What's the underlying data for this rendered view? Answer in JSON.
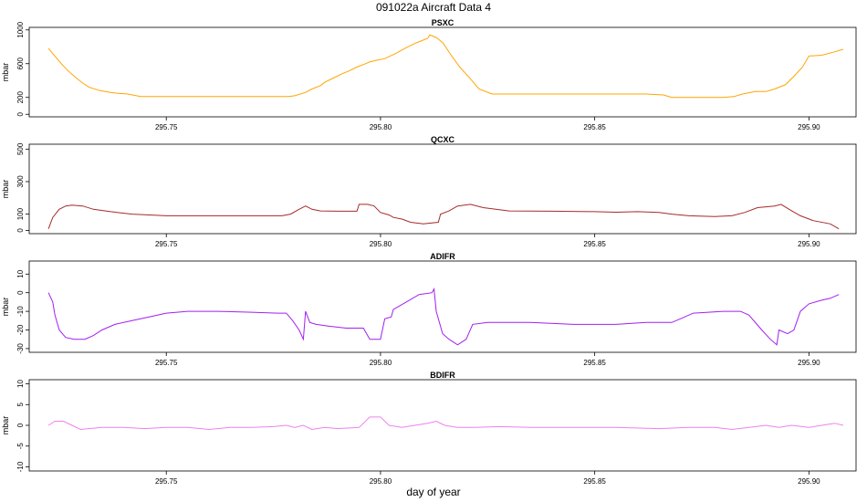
{
  "figure": {
    "title": "091022a   Aircraft Data 4",
    "xlabel": "day of year"
  },
  "chart_data": [
    {
      "type": "line",
      "title": "PSXC",
      "ylabel": "mbar",
      "xlim": [
        295.718,
        295.911
      ],
      "ylim": [
        -30,
        1030
      ],
      "yticks": [
        0,
        200,
        600,
        1000
      ],
      "xticks": [
        295.75,
        295.8,
        295.85,
        295.9
      ],
      "color": "#FFA500",
      "series": [
        {
          "x": [
            295.7225,
            295.7235,
            295.7245,
            295.7255,
            295.727,
            295.729,
            295.7305,
            295.732,
            295.7345,
            295.737,
            295.7385,
            295.741,
            295.744,
            295.748,
            295.752,
            295.756,
            295.76,
            295.764,
            295.768,
            295.772,
            295.776,
            295.7785,
            295.78,
            295.7825,
            295.784,
            295.786,
            295.787,
            295.789,
            295.791,
            295.7925,
            295.7945,
            295.7965,
            295.7975,
            295.799,
            295.801,
            295.8035,
            295.806,
            295.8085,
            295.81,
            295.811,
            295.8115,
            295.813,
            295.8145,
            295.8165,
            295.8185,
            295.821,
            295.823,
            295.826,
            295.832,
            295.84,
            295.848,
            295.856,
            295.862,
            295.866,
            295.868,
            295.872,
            295.876,
            295.88,
            295.8825,
            295.8845,
            295.8875,
            295.89,
            295.892,
            295.8945,
            295.8965,
            295.8985,
            295.9,
            295.903,
            295.906,
            295.908
          ],
          "y": [
            780,
            720,
            660,
            600,
            520,
            430,
            370,
            320,
            280,
            260,
            250,
            240,
            210,
            210,
            210,
            210,
            210,
            210,
            210,
            210,
            210,
            210,
            220,
            260,
            300,
            340,
            380,
            430,
            480,
            510,
            560,
            600,
            620,
            640,
            660,
            720,
            790,
            850,
            880,
            900,
            940,
            910,
            850,
            700,
            560,
            420,
            300,
            240,
            240,
            240,
            240,
            240,
            240,
            230,
            200,
            200,
            200,
            200,
            210,
            240,
            270,
            270,
            300,
            350,
            450,
            560,
            690,
            700,
            740,
            770
          ]
        }
      ]
    },
    {
      "type": "line",
      "title": "QCXC",
      "ylabel": "mbar",
      "xlim": [
        295.718,
        295.911
      ],
      "ylim": [
        -20,
        530
      ],
      "yticks": [
        0,
        100,
        300,
        500
      ],
      "xticks": [
        295.75,
        295.8,
        295.85,
        295.9
      ],
      "color": "#A52A2A",
      "series": [
        {
          "x": [
            295.7225,
            295.7235,
            295.725,
            295.7265,
            295.728,
            295.7305,
            295.733,
            295.737,
            295.742,
            295.75,
            295.76,
            295.77,
            295.777,
            295.779,
            295.781,
            295.7825,
            295.784,
            295.786,
            295.79,
            295.7945,
            295.795,
            295.797,
            295.7985,
            295.8,
            295.802,
            295.803,
            295.805,
            295.807,
            295.81,
            295.8135,
            295.814,
            295.816,
            295.818,
            295.821,
            295.824,
            295.83,
            295.84,
            295.85,
            295.855,
            295.86,
            295.865,
            295.868,
            295.872,
            295.878,
            295.882,
            295.885,
            295.888,
            295.892,
            295.8935,
            295.896,
            295.898,
            295.901,
            295.905,
            295.907
          ],
          "y": [
            10,
            80,
            130,
            150,
            155,
            150,
            130,
            115,
            100,
            90,
            90,
            90,
            90,
            100,
            130,
            150,
            130,
            120,
            118,
            118,
            160,
            160,
            150,
            110,
            95,
            80,
            70,
            50,
            40,
            50,
            100,
            120,
            150,
            160,
            140,
            120,
            118,
            115,
            112,
            115,
            110,
            100,
            90,
            85,
            90,
            110,
            140,
            150,
            160,
            120,
            90,
            60,
            40,
            10
          ]
        }
      ]
    },
    {
      "type": "line",
      "title": "ADIFR",
      "ylabel": "mbar",
      "xlim": [
        295.718,
        295.911
      ],
      "ylim": [
        -32,
        17
      ],
      "yticks": [
        -30,
        -20,
        -10,
        0,
        10
      ],
      "xticks": [
        295.75,
        295.8,
        295.85,
        295.9
      ],
      "color": "#A020F0",
      "series": [
        {
          "x": [
            295.7225,
            295.7235,
            295.724,
            295.725,
            295.7265,
            295.7285,
            295.731,
            295.733,
            295.735,
            295.738,
            295.742,
            295.746,
            295.75,
            295.755,
            295.762,
            295.77,
            295.776,
            295.778,
            295.7795,
            295.781,
            295.782,
            295.7825,
            295.7835,
            295.785,
            295.788,
            295.792,
            295.796,
            295.7975,
            295.8,
            295.801,
            295.8025,
            295.803,
            295.806,
            295.809,
            295.812,
            295.8125,
            295.813,
            295.8145,
            295.816,
            295.818,
            295.82,
            295.8215,
            295.825,
            295.835,
            295.845,
            295.855,
            295.862,
            295.868,
            295.87,
            295.873,
            295.88,
            295.884,
            295.886,
            295.889,
            295.891,
            295.8925,
            295.893,
            295.895,
            295.8965,
            295.898,
            295.9,
            295.903,
            295.905,
            295.907
          ],
          "y": [
            0,
            -5,
            -12,
            -20,
            -24,
            -25,
            -25,
            -23,
            -20,
            -17,
            -15,
            -13,
            -11,
            -10,
            -10,
            -10.5,
            -11,
            -11,
            -15,
            -20,
            -25,
            -10,
            -16,
            -17,
            -18,
            -19,
            -19,
            -25,
            -25,
            -14,
            -13,
            -9,
            -5,
            -1,
            0,
            2,
            -10,
            -22,
            -25,
            -28,
            -25,
            -17,
            -16,
            -16,
            -17,
            -17,
            -16,
            -16,
            -14,
            -11,
            -10,
            -10,
            -12,
            -20,
            -25,
            -28,
            -20,
            -22,
            -20,
            -10,
            -6,
            -4,
            -3,
            -1
          ]
        }
      ]
    },
    {
      "type": "line",
      "title": "BDIFR",
      "ylabel": "mbar",
      "xlim": [
        295.718,
        295.911
      ],
      "ylim": [
        -11,
        11
      ],
      "yticks": [
        -10,
        -5,
        0,
        5,
        10
      ],
      "xticks": [
        295.75,
        295.8,
        295.85,
        295.9
      ],
      "color": "#EE82EE",
      "series": [
        {
          "x": [
            295.7225,
            295.724,
            295.726,
            295.728,
            295.73,
            295.735,
            295.74,
            295.745,
            295.75,
            295.755,
            295.76,
            295.765,
            295.77,
            295.775,
            295.778,
            295.78,
            295.782,
            295.784,
            295.787,
            295.79,
            295.795,
            295.7975,
            295.8,
            295.802,
            295.805,
            295.808,
            295.811,
            295.813,
            295.815,
            295.818,
            295.822,
            295.828,
            295.835,
            295.845,
            295.855,
            295.865,
            295.872,
            295.878,
            295.882,
            295.886,
            295.89,
            295.893,
            295.896,
            295.9,
            295.903,
            295.906,
            295.908
          ],
          "y": [
            0,
            1,
            1,
            0,
            -1,
            -0.5,
            -0.5,
            -0.8,
            -0.5,
            -0.5,
            -1,
            -0.5,
            -0.5,
            -0.3,
            0,
            -0.5,
            0,
            -1,
            -0.5,
            -0.8,
            -0.5,
            2,
            2,
            0,
            -0.5,
            0,
            0.5,
            1,
            0,
            -0.5,
            -0.5,
            -0.3,
            -0.5,
            -0.5,
            -0.5,
            -0.8,
            -0.5,
            -0.5,
            -1,
            -0.5,
            0,
            -0.5,
            0,
            -0.5,
            0,
            0.5,
            0
          ]
        }
      ]
    }
  ]
}
